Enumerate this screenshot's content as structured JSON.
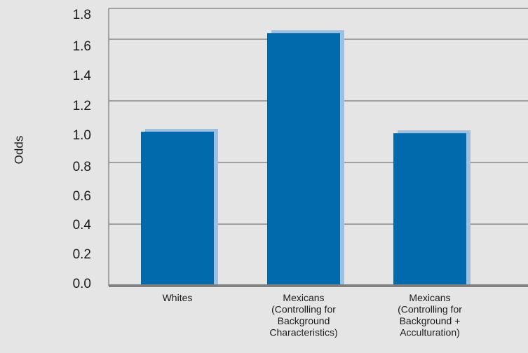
{
  "chart_data": {
    "type": "bar",
    "title": "",
    "xlabel": "",
    "ylabel": "Odds",
    "ylim": [
      0,
      1.8
    ],
    "grid": true,
    "y_tick_labels": [
      "0.0",
      "0.2",
      "0.4",
      "0.6",
      "0.8",
      "1.0",
      "1.2",
      "1.4",
      "1.6",
      "1.8"
    ],
    "categories": [
      [
        "Whites"
      ],
      [
        "Mexicans",
        "(Controlling for",
        "Background",
        "Characteristics)"
      ],
      [
        "Mexicans",
        "(Controlling for",
        "Background +",
        "Acculturation)"
      ]
    ],
    "values": [
      1.0,
      1.64,
      0.99
    ],
    "colors": {
      "bar": "#006aad",
      "bar_shadow": "#9fbfdf",
      "background": "#e5e5e5",
      "grid": "#8c8c8c",
      "axis": "#7f7f7f",
      "text": "#1a1a1a"
    }
  }
}
